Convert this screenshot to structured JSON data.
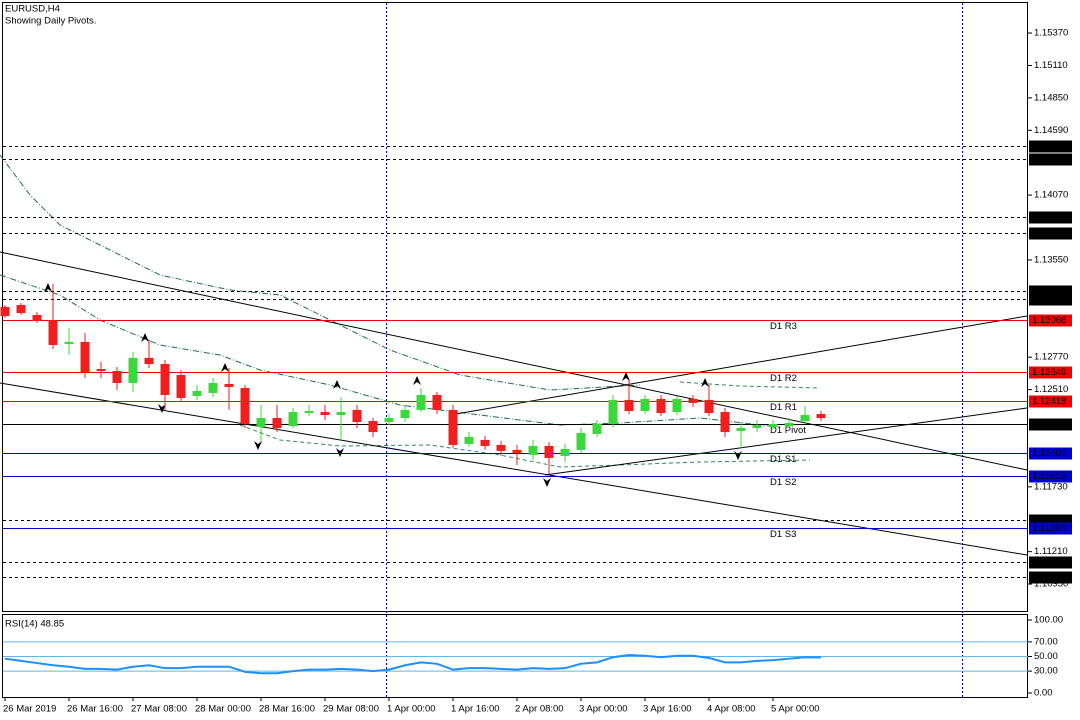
{
  "chart_data": [
    {
      "type": "candlestick",
      "title": "EURUSD,H4",
      "subtitle": "Showing Daily Pivots.",
      "categories": [
        "26 Mar 2019",
        null,
        null,
        null,
        "26 Mar 16:00",
        null,
        null,
        null,
        "27 Mar 08:00",
        null,
        null,
        null,
        "28 Mar 00:00",
        null,
        null,
        null,
        "28 Mar 16:00",
        null,
        null,
        null,
        "29 Mar 08:00",
        null,
        null,
        null,
        "1 Apr 00:00",
        null,
        null,
        null,
        "1 Apr 16:00",
        null,
        null,
        null,
        "2 Apr 08:00",
        null,
        null,
        null,
        "3 Apr 00:00",
        null,
        null,
        null,
        "3 Apr 16:00",
        null,
        null,
        null,
        "4 Apr 08:00",
        null,
        null,
        null,
        "5 Apr 00:00",
        null,
        null,
        null
      ],
      "open": [
        1.13173,
        1.13189,
        1.13108,
        1.13068,
        1.12876,
        1.12892,
        1.12675,
        1.12659,
        1.12563,
        1.12764,
        1.12715,
        1.12627,
        1.12459,
        1.12483,
        1.12555,
        1.12523,
        1.1221,
        1.12282,
        1.12218,
        1.12322,
        1.1233,
        1.12306,
        1.12347,
        1.12258,
        1.1225,
        1.12282,
        1.12347,
        1.12467,
        1.12347,
        1.12074,
        1.12106,
        1.12066,
        1.12026,
        1.11986,
        1.12058,
        1.11978,
        1.12026,
        1.12154,
        1.12234,
        1.12427,
        1.12338,
        1.12435,
        1.1233,
        1.12435,
        1.12427,
        1.1233,
        1.12178,
        1.12202,
        1.1221,
        1.12218,
        1.12258,
        1.12314
      ],
      "high": [
        1.13189,
        1.13205,
        1.13133,
        1.13357,
        1.13004,
        1.12964,
        1.12732,
        1.12691,
        1.12812,
        1.12908,
        1.12748,
        1.12667,
        1.12547,
        1.12603,
        1.12683,
        1.12547,
        1.12387,
        1.12387,
        1.12363,
        1.12387,
        1.12387,
        1.12451,
        1.12387,
        1.12282,
        1.12314,
        1.12387,
        1.12523,
        1.12491,
        1.12387,
        1.1217,
        1.12138,
        1.12098,
        1.12066,
        1.12106,
        1.1209,
        1.12074,
        1.12202,
        1.12266,
        1.12467,
        1.12587,
        1.12467,
        1.12467,
        1.12459,
        1.12467,
        1.12547,
        1.12363,
        1.1225,
        1.12266,
        1.12266,
        1.12282,
        1.12379,
        1.12338
      ],
      "low": [
        1.13084,
        1.13108,
        1.13044,
        1.12836,
        1.12788,
        1.12603,
        1.12603,
        1.12507,
        1.12491,
        1.12683,
        1.12347,
        1.12411,
        1.12427,
        1.12451,
        1.12347,
        1.12202,
        1.1209,
        1.1217,
        1.12202,
        1.12298,
        1.12266,
        1.12106,
        1.12202,
        1.1213,
        1.12226,
        1.1225,
        1.1233,
        1.12314,
        1.12042,
        1.1205,
        1.12026,
        1.11978,
        1.11905,
        1.11946,
        1.11833,
        1.11929,
        1.12002,
        1.1213,
        1.1221,
        1.12314,
        1.12314,
        1.12298,
        1.12306,
        1.12371,
        1.12298,
        1.1213,
        1.12042,
        1.1217,
        1.12186,
        1.12202,
        1.12234,
        1.12258
      ],
      "close": [
        1.131,
        1.13124,
        1.1306,
        1.12868,
        1.12892,
        1.12651,
        1.12659,
        1.12563,
        1.12764,
        1.12715,
        1.12467,
        1.12443,
        1.12499,
        1.12563,
        1.12531,
        1.12234,
        1.12282,
        1.12202,
        1.1233,
        1.12338,
        1.12306,
        1.1233,
        1.1225,
        1.1217,
        1.12282,
        1.12347,
        1.12467,
        1.12347,
        1.12066,
        1.1213,
        1.12058,
        1.12018,
        1.12002,
        1.12058,
        1.11962,
        1.12034,
        1.12162,
        1.12234,
        1.12427,
        1.12338,
        1.12435,
        1.12322,
        1.12435,
        1.12403,
        1.12322,
        1.1217,
        1.12202,
        1.12226,
        1.12234,
        1.12242,
        1.12306,
        1.12282
      ],
      "up_color": "#3cd73c",
      "down_color": "#f01e1e",
      "ylim": [
        1.10726,
        1.15619
      ],
      "yticks": [
        {
          "value": 1.1537,
          "label": "1.15370"
        },
        {
          "value": 1.1511,
          "label": "1.15110"
        },
        {
          "value": 1.1485,
          "label": "1.14850"
        },
        {
          "value": 1.1459,
          "label": "1.14590"
        },
        {
          "value": 1.1407,
          "label": "1.14070"
        },
        {
          "value": 1.1355,
          "label": "1.13550"
        },
        {
          "value": 1.1277,
          "label": "1.12770"
        },
        {
          "value": 1.1251,
          "label": "1.12510"
        },
        {
          "value": 1.1173,
          "label": "1.11730"
        },
        {
          "value": 1.1121,
          "label": "1.11210"
        },
        {
          "value": 1.1095,
          "label": "1.10950"
        }
      ],
      "levels": [
        {
          "value": 1.14464,
          "color": "#000000"
        },
        {
          "value": 1.14362,
          "color": "#000000"
        },
        {
          "value": 1.13895,
          "color": "#000000"
        },
        {
          "value": 1.13765,
          "color": "#000000"
        },
        {
          "value": 1.13301,
          "color": "#000000"
        },
        {
          "value": 1.13237,
          "color": "#000000"
        },
        {
          "value": 1.11465,
          "color": "#000000"
        },
        {
          "value": 1.11127,
          "color": "#000000"
        },
        {
          "value": 1.11006,
          "color": "#000000"
        }
      ],
      "pivots": [
        {
          "name": "D1 R3",
          "value": 1.13066,
          "color": "#f00000"
        },
        {
          "name": "D1 R2",
          "value": 1.12649,
          "color": "#f00000"
        },
        {
          "name": "D1 R1",
          "value": 1.12418,
          "color": "#f00000"
        },
        {
          "name": "D1 Pivot",
          "value": 1.12232,
          "color": "#000000"
        },
        {
          "name": "D1 S1",
          "value": 1.12001,
          "color": "#0000cd"
        },
        {
          "name": "D1 S2",
          "value": 1.11815,
          "color": "#0000cd"
        },
        {
          "name": "D1 S3",
          "value": 1.11398,
          "color": "#0000cd"
        }
      ]
    },
    {
      "type": "line",
      "title": "RSI(14) 48.85",
      "values": [
        47,
        44,
        41,
        38,
        36,
        33,
        33,
        32,
        36,
        38,
        34,
        34,
        36,
        36,
        36,
        29,
        27,
        27,
        30,
        32,
        32,
        33,
        32,
        30,
        32,
        38,
        42,
        40,
        32,
        34,
        34,
        33,
        32,
        34,
        33,
        34,
        40,
        42,
        49,
        52,
        51,
        49,
        51,
        51,
        48,
        42,
        42,
        44,
        45,
        47,
        49,
        48.85
      ],
      "color": "#1e8fff",
      "ylim": [
        0,
        100
      ],
      "yticks": [
        {
          "value": 100,
          "label": "100.00"
        },
        {
          "value": 70,
          "label": "70.00"
        },
        {
          "value": 50,
          "label": "50.00"
        },
        {
          "value": 30,
          "label": "30.00"
        },
        {
          "value": 0,
          "label": "0.00"
        }
      ]
    }
  ]
}
